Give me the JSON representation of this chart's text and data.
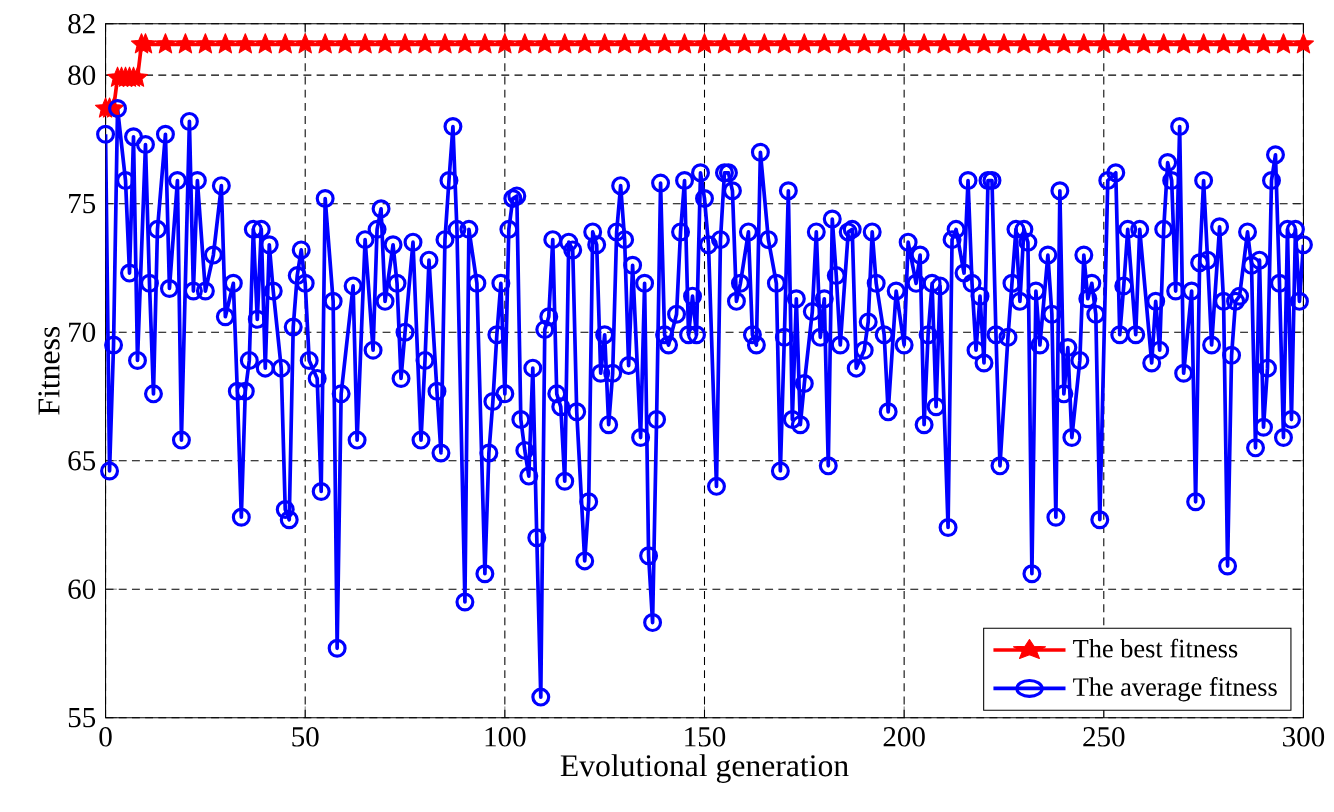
{
  "chart_data": {
    "type": "line",
    "xlabel": "Evolutional generation",
    "ylabel": "Fitness",
    "xlim": [
      0,
      300
    ],
    "ylim": [
      55,
      82
    ],
    "xticks": [
      0,
      50,
      100,
      150,
      200,
      250,
      300
    ],
    "yticks": [
      55,
      60,
      65,
      70,
      75,
      80,
      82
    ],
    "grid": true,
    "legend": "bottom right",
    "line_style": "solid",
    "series": [
      {
        "name": "The best fitness",
        "color": "#ff0000",
        "marker": "star",
        "x": [
          0,
          1,
          2,
          3,
          4,
          5,
          6,
          7,
          8,
          9,
          10,
          15,
          20,
          25,
          30,
          35,
          40,
          45,
          50,
          55,
          60,
          65,
          70,
          75,
          80,
          85,
          90,
          95,
          100,
          105,
          110,
          115,
          120,
          125,
          130,
          135,
          140,
          145,
          150,
          155,
          160,
          165,
          170,
          175,
          180,
          185,
          190,
          195,
          200,
          205,
          210,
          215,
          220,
          225,
          230,
          235,
          240,
          245,
          250,
          255,
          260,
          265,
          270,
          275,
          280,
          285,
          290,
          295,
          300
        ],
        "values": [
          78.7,
          78.7,
          78.7,
          79.9,
          79.9,
          79.9,
          79.9,
          79.9,
          79.9,
          81.2,
          81.2,
          81.2,
          81.2,
          81.2,
          81.2,
          81.2,
          81.2,
          81.2,
          81.2,
          81.2,
          81.2,
          81.2,
          81.2,
          81.2,
          81.2,
          81.2,
          81.2,
          81.2,
          81.2,
          81.2,
          81.2,
          81.2,
          81.2,
          81.2,
          81.2,
          81.2,
          81.2,
          81.2,
          81.2,
          81.2,
          81.2,
          81.2,
          81.2,
          81.2,
          81.2,
          81.2,
          81.2,
          81.2,
          81.2,
          81.2,
          81.2,
          81.2,
          81.2,
          81.2,
          81.2,
          81.2,
          81.2,
          81.2,
          81.2,
          81.2,
          81.2,
          81.2,
          81.2,
          81.2,
          81.2,
          81.2,
          81.2,
          81.2,
          81.2
        ]
      },
      {
        "name": "The average fitness",
        "color": "#0000ff",
        "marker": "circle",
        "x": [
          0,
          1,
          2,
          3,
          5,
          6,
          7,
          8,
          10,
          11,
          12,
          13,
          15,
          16,
          18,
          19,
          21,
          22,
          23,
          25,
          27,
          29,
          30,
          32,
          33,
          34,
          35,
          36,
          37,
          38,
          39,
          40,
          41,
          42,
          44,
          45,
          46,
          47,
          48,
          49,
          50,
          51,
          53,
          54,
          55,
          57,
          58,
          59,
          62,
          63,
          65,
          67,
          68,
          69,
          70,
          72,
          73,
          74,
          75,
          77,
          79,
          80,
          81,
          83,
          84,
          85,
          86,
          87,
          88,
          90,
          91,
          93,
          95,
          96,
          97,
          98,
          99,
          100,
          101,
          102,
          103,
          104,
          105,
          106,
          107,
          108,
          109,
          110,
          111,
          112,
          113,
          114,
          115,
          116,
          117,
          118,
          120,
          121,
          122,
          123,
          124,
          125,
          126,
          127,
          128,
          129,
          130,
          131,
          132,
          134,
          135,
          136,
          137,
          138,
          139,
          140,
          141,
          143,
          144,
          145,
          146,
          147,
          148,
          149,
          150,
          151,
          153,
          154,
          155,
          156,
          157,
          158,
          159,
          161,
          162,
          163,
          164,
          166,
          168,
          169,
          170,
          171,
          172,
          173,
          174,
          175,
          177,
          178,
          179,
          180,
          181,
          182,
          183,
          184,
          186,
          187,
          188,
          190,
          191,
          192,
          193,
          195,
          196,
          198,
          200,
          201,
          203,
          204,
          205,
          206,
          207,
          208,
          209,
          211,
          212,
          213,
          215,
          216,
          217,
          218,
          219,
          220,
          221,
          222,
          223,
          224,
          226,
          227,
          228,
          229,
          230,
          231,
          232,
          233,
          234,
          236,
          237,
          238,
          239,
          240,
          241,
          242,
          244,
          245,
          246,
          247,
          248,
          249,
          251,
          253,
          254,
          255,
          256,
          258,
          259,
          262,
          263,
          264,
          265,
          266,
          267,
          268,
          269,
          270,
          272,
          273,
          274,
          275,
          276,
          277,
          279,
          280,
          281,
          282,
          283,
          284,
          286,
          287,
          288,
          289,
          290,
          291,
          292,
          293,
          294,
          295,
          296,
          297,
          298,
          299,
          300
        ],
        "values": [
          77.7,
          64.6,
          69.5,
          78.7,
          75.9,
          72.3,
          77.6,
          68.9,
          77.3,
          71.9,
          67.6,
          74.0,
          77.7,
          71.7,
          75.9,
          65.8,
          78.2,
          71.6,
          75.9,
          71.6,
          73.0,
          75.7,
          70.6,
          71.9,
          67.7,
          62.8,
          67.7,
          68.9,
          74.0,
          70.5,
          74.0,
          68.6,
          73.4,
          71.6,
          68.6,
          63.1,
          62.7,
          70.2,
          72.2,
          73.2,
          71.9,
          68.9,
          68.2,
          63.8,
          75.2,
          71.2,
          57.7,
          67.6,
          71.8,
          65.8,
          73.6,
          69.3,
          74.0,
          74.8,
          71.2,
          73.4,
          71.9,
          68.2,
          70.0,
          73.5,
          65.8,
          68.9,
          72.8,
          67.7,
          65.3,
          73.6,
          75.9,
          78.0,
          74.0,
          59.5,
          74.0,
          71.9,
          60.6,
          65.3,
          67.3,
          69.9,
          71.9,
          67.6,
          74.0,
          75.2,
          75.3,
          66.6,
          65.4,
          64.4,
          68.6,
          62.0,
          55.8,
          70.1,
          70.6,
          73.6,
          67.6,
          67.1,
          64.2,
          73.5,
          73.2,
          66.9,
          61.1,
          63.4,
          73.9,
          73.4,
          68.4,
          69.9,
          66.4,
          68.4,
          73.9,
          75.7,
          73.6,
          68.7,
          72.6,
          65.9,
          71.9,
          61.3,
          58.7,
          66.6,
          75.8,
          69.9,
          69.5,
          70.7,
          73.9,
          75.9,
          69.9,
          71.4,
          69.9,
          76.2,
          75.2,
          73.4,
          64.0,
          73.6,
          76.2,
          76.2,
          75.5,
          71.2,
          71.9,
          73.9,
          69.9,
          69.5,
          77.0,
          73.6,
          71.9,
          64.6,
          69.8,
          75.5,
          66.6,
          71.3,
          66.4,
          68.0,
          70.8,
          73.9,
          69.8,
          71.3,
          64.8,
          74.4,
          72.2,
          69.5,
          73.9,
          74.0,
          68.6,
          69.3,
          70.4,
          73.9,
          71.9,
          69.9,
          66.9,
          71.6,
          69.5,
          73.5,
          71.9,
          73.0,
          66.4,
          69.9,
          71.9,
          67.1,
          71.8,
          62.4,
          73.6,
          74.0,
          72.3,
          75.9,
          71.9,
          69.3,
          71.4,
          68.8,
          75.9,
          75.9,
          69.9,
          64.8,
          69.8,
          71.9,
          74.0,
          71.2,
          74.0,
          73.5,
          60.6,
          71.6,
          69.5,
          73.0,
          70.7,
          62.8,
          75.5,
          67.6,
          69.4,
          65.9,
          68.9,
          73.0,
          71.3,
          71.9,
          70.7,
          62.7,
          75.9,
          76.2,
          69.9,
          71.8,
          74.0,
          69.9,
          74.0,
          68.8,
          71.2,
          69.3,
          74.0,
          76.6,
          75.9,
          71.6,
          78.0,
          68.4,
          71.6,
          63.4,
          72.7,
          75.9,
          72.8,
          69.5,
          74.1,
          71.2,
          60.9,
          69.1,
          71.2,
          71.4,
          73.9,
          72.6,
          65.5,
          72.8,
          66.3,
          68.6,
          75.9,
          76.9,
          71.9,
          65.9,
          74.0,
          66.6,
          74.0,
          71.2,
          73.4
        ]
      }
    ]
  }
}
